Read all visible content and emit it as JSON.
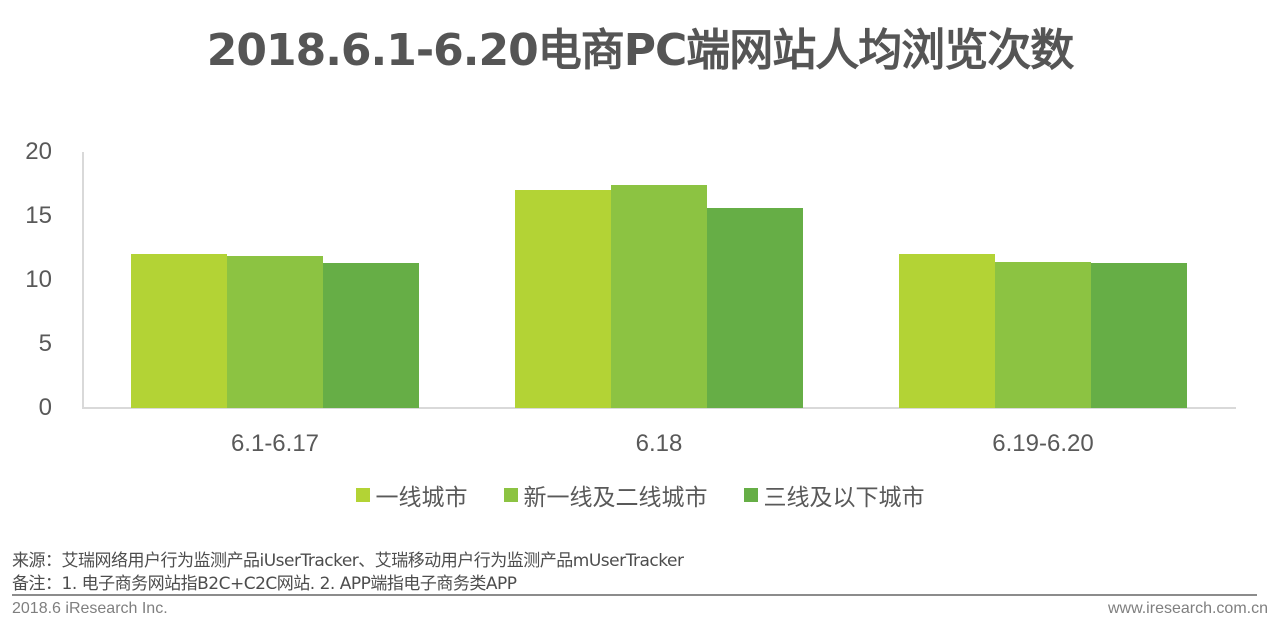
{
  "title": "2018.6.1-6.20电商PC端网站人均浏览次数",
  "chart_data": {
    "type": "bar",
    "title": "2018.6.1-6.20电商PC端网站人均浏览次数",
    "xlabel": "",
    "ylabel": "",
    "ylim": [
      0,
      20
    ],
    "yticks": [
      0,
      5,
      10,
      15,
      20
    ],
    "grid": false,
    "legend_position": "bottom",
    "categories": [
      "6.1-6.17",
      "6.18",
      "6.19-6.20"
    ],
    "series": [
      {
        "name": "一线城市",
        "color": "#b3d335",
        "values": [
          12.0,
          17.0,
          12.0
        ]
      },
      {
        "name": "新一线及二线城市",
        "color": "#8cc342",
        "values": [
          11.9,
          17.4,
          11.4
        ]
      },
      {
        "name": "三线及以下城市",
        "color": "#66ae46",
        "values": [
          11.3,
          15.6,
          11.3
        ]
      }
    ]
  },
  "yaxis": {
    "ticks": [
      "20",
      "15",
      "10",
      "5",
      "0"
    ]
  },
  "xaxis": {
    "labels": [
      "6.1-6.17",
      "6.18",
      "6.19-6.20"
    ]
  },
  "legend": {
    "items": [
      {
        "label": "一线城市",
        "color": "#b3d335"
      },
      {
        "label": "新一线及二线城市",
        "color": "#8cc342"
      },
      {
        "label": "三线及以下城市",
        "color": "#66ae46"
      }
    ]
  },
  "notes": {
    "source": "来源：艾瑞网络用户行为监测产品iUserTracker、艾瑞移动用户行为监测产品mUserTracker",
    "remark": "备注：1. 电子商务网站指B2C+C2C网站. 2. APP端指电子商务类APP"
  },
  "footer": {
    "left": "2018.6 iResearch Inc.",
    "right": "www.iresearch.com.cn"
  }
}
